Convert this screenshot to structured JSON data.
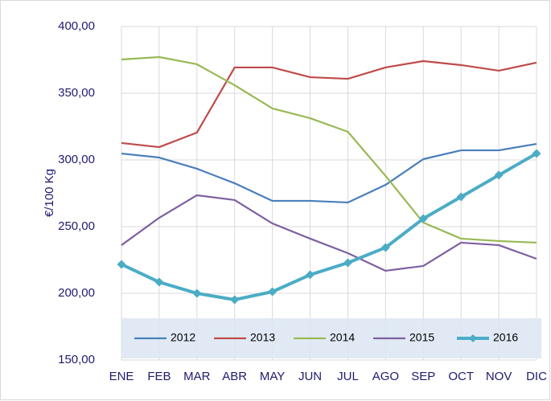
{
  "chart_data": {
    "type": "line",
    "y_label": "€/100 Kg",
    "categories": [
      "ENE",
      "FEB",
      "MAR",
      "ABR",
      "MAY",
      "JUN",
      "JUL",
      "AGO",
      "SEP",
      "OCT",
      "NOV",
      "DIC"
    ],
    "series": [
      {
        "name": "2012",
        "color": "#4a7ebb",
        "values": [
          304.8,
          301.8,
          293.4,
          282.5,
          269.3,
          269.3,
          268.1,
          281.3,
          300.6,
          307.2,
          307.2,
          312.0
        ]
      },
      {
        "name": "2013",
        "color": "#be4b48",
        "values": [
          312.7,
          309.6,
          320.5,
          369.3,
          369.3,
          362.0,
          360.8,
          369.3,
          374.1,
          371.1,
          366.9,
          372.9
        ]
      },
      {
        "name": "2014",
        "color": "#98b954",
        "values": [
          375.3,
          377.1,
          371.7,
          356.0,
          338.6,
          331.3,
          321.1,
          288.0,
          253.0,
          241.0,
          239.2,
          238.0
        ]
      },
      {
        "name": "2015",
        "color": "#7d60a0",
        "values": [
          236.1,
          256.6,
          273.5,
          269.9,
          252.4,
          241.0,
          230.1,
          216.9,
          220.5,
          238.0,
          236.1,
          225.9
        ]
      },
      {
        "name": "2016",
        "color": "#4bacc6",
        "marker": "diamond",
        "values": [
          221.7,
          208.4,
          200.0,
          195.2,
          201.2,
          213.9,
          222.9,
          234.3,
          256.0,
          272.3,
          288.6,
          304.8
        ]
      }
    ],
    "ylim": [
      150,
      400
    ],
    "yticks": [
      {
        "value": 150,
        "label": "150,00"
      },
      {
        "value": 200,
        "label": "200,00"
      },
      {
        "value": 250,
        "label": "250,00"
      },
      {
        "value": 300,
        "label": "300,00"
      },
      {
        "value": 350,
        "label": "350,00"
      },
      {
        "value": 400,
        "label": "400,00"
      }
    ],
    "grid": true,
    "legend": "bottom"
  }
}
